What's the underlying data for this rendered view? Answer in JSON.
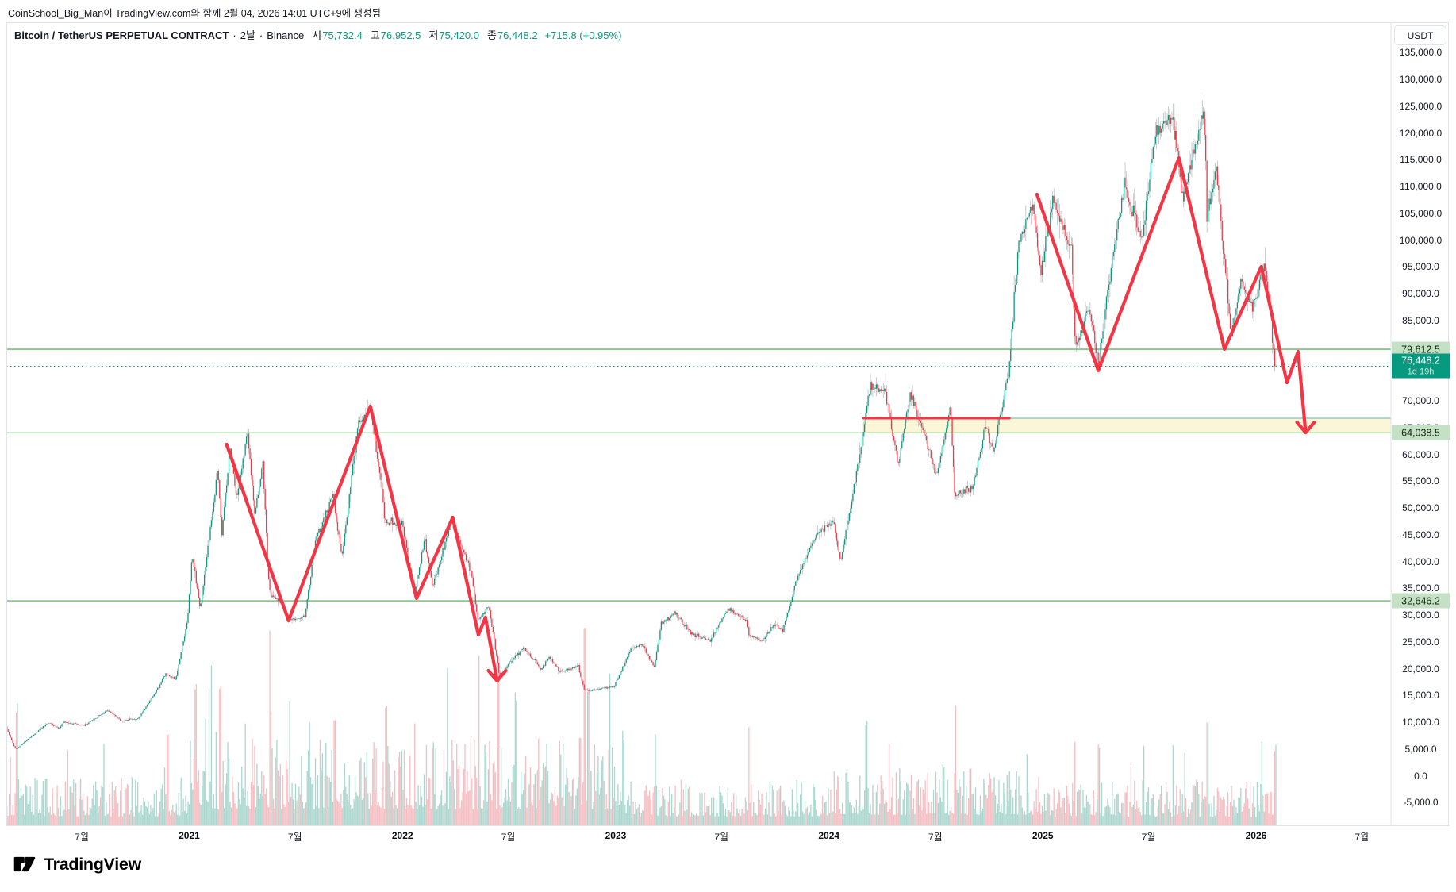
{
  "attribution": "CoinSchool_Big_Man이 TradingView.com와 함께 2월 04, 2026 14:01 UTC+9에 생성됨",
  "header": {
    "symbol": "Bitcoin / TetherUS PERPETUAL CONTRACT",
    "separator": "·",
    "interval": "2날",
    "exchange": "Binance",
    "ohlc": [
      {
        "label": "시",
        "value": "75,732.4"
      },
      {
        "label": "고",
        "value": "76,952.5"
      },
      {
        "label": "저",
        "value": "75,420.0"
      },
      {
        "label": "종",
        "value": "76,448.2"
      }
    ],
    "change": "+715.8 (+0.95%)"
  },
  "axis": {
    "currency_button": "USDT",
    "price_labels": [
      "135,000.0",
      "130,000.0",
      "125,000.0",
      "120,000.0",
      "115,000.0",
      "110,000.0",
      "105,000.0",
      "100,000.0",
      "95,000.0",
      "90,000.0",
      "85,000.0",
      "70,000.0",
      "65,000.0",
      "60,000.0",
      "55,000.0",
      "50,000.0",
      "45,000.0",
      "40,000.0",
      "35,000.0",
      "30,000.0",
      "25,000.0",
      "20,000.0",
      "15,000.0",
      "10,000.0",
      "5,000.0",
      "0.0",
      "-5,000.0"
    ],
    "time_labels": [
      {
        "text": "7월",
        "date": "2020-07-01",
        "year": false
      },
      {
        "text": "2021",
        "date": "2021-01-01",
        "year": true
      },
      {
        "text": "7월",
        "date": "2021-07-01",
        "year": false
      },
      {
        "text": "2022",
        "date": "2022-01-01",
        "year": true
      },
      {
        "text": "7월",
        "date": "2022-07-01",
        "year": false
      },
      {
        "text": "2023",
        "date": "2023-01-01",
        "year": true
      },
      {
        "text": "7월",
        "date": "2023-07-01",
        "year": false
      },
      {
        "text": "2024",
        "date": "2024-01-01",
        "year": true
      },
      {
        "text": "7월",
        "date": "2024-07-01",
        "year": false
      },
      {
        "text": "2025",
        "date": "2025-01-01",
        "year": true
      },
      {
        "text": "7월",
        "date": "2025-07-01",
        "year": false
      },
      {
        "text": "2026",
        "date": "2026-01-01",
        "year": true
      },
      {
        "text": "7월",
        "date": "2026-07-01",
        "year": false
      }
    ]
  },
  "logo": {
    "text": "TradingView"
  },
  "colors": {
    "up": "#089981",
    "down": "#f23645",
    "wick": "#a0a3ab",
    "vol_up": "#abd7cf",
    "vol_down": "#f4bfc3",
    "line_green": "#8ec78f",
    "label_green_bg": "#c5e1c5",
    "teal": "#089981",
    "zone_fill": "#fcf6d8",
    "zone_border": "#46a79b",
    "drawing_red": "#f23645",
    "axis_border": "#e0e3eb",
    "text": "#131722"
  },
  "chart_data": {
    "type": "candlestick",
    "symbol": "Bitcoin / TetherUS PERPETUAL CONTRACT",
    "exchange": "Binance",
    "interval": "2날",
    "quote_currency": "USDT",
    "current_price": 76448.2,
    "price_axis": {
      "min": -5000,
      "max": 135000,
      "tick_step": 5000
    },
    "time_axis_range": [
      "2020-02-22",
      "2026-08-01"
    ],
    "levels": {
      "resistance": {
        "price": 79612.5,
        "label": "79,612.5"
      },
      "current": {
        "price": 76448.2,
        "label": "76,448.2",
        "countdown": "1d 19h"
      },
      "zone_bottom": {
        "price": 64038.5,
        "label": "64,038.5"
      },
      "support": {
        "price": 32646.2,
        "label": "32,646.2"
      }
    },
    "supply_zone": {
      "from": "2024-02-29",
      "price_top": 66741,
      "price_bottom": 64038.5,
      "extend_right": true
    },
    "red_horizontal_line": {
      "from": "2024-02-29",
      "to": "2024-11-05",
      "price": 66741
    },
    "drawings": [
      {
        "name": "bear-zigzag-2021-2022",
        "arrow": "down",
        "points": [
          [
            "2021-03-06",
            61850
          ],
          [
            "2021-06-20",
            28960
          ],
          [
            "2021-11-07",
            68960
          ],
          [
            "2022-01-25",
            33110
          ],
          [
            "2022-03-28",
            48220
          ],
          [
            "2022-05-11",
            26300
          ],
          [
            "2022-05-23",
            29560
          ],
          [
            "2022-06-12",
            17700
          ]
        ]
      },
      {
        "name": "bear-zigzag-2025-2026",
        "arrow": "down",
        "points": [
          [
            "2024-12-22",
            108520
          ],
          [
            "2025-04-06",
            75630
          ],
          [
            "2025-08-22",
            115330
          ],
          [
            "2025-11-08",
            79630
          ],
          [
            "2026-01-10",
            95040
          ],
          [
            "2026-02-23",
            73410
          ],
          [
            "2026-03-14",
            79190
          ],
          [
            "2026-03-27",
            64070
          ]
        ]
      }
    ],
    "price_path": [
      [
        "2020-02-22",
        9650
      ],
      [
        "2020-03-12",
        4900
      ],
      [
        "2020-04-06",
        7200
      ],
      [
        "2020-05-07",
        9900
      ],
      [
        "2020-05-25",
        8800
      ],
      [
        "2020-06-02",
        10100
      ],
      [
        "2020-07-06",
        9300
      ],
      [
        "2020-08-17",
        12250
      ],
      [
        "2020-09-08",
        10250
      ],
      [
        "2020-10-07",
        10650
      ],
      [
        "2020-11-06",
        15500
      ],
      [
        "2020-11-24",
        19100
      ],
      [
        "2020-12-11",
        17900
      ],
      [
        "2020-12-31",
        29000
      ],
      [
        "2021-01-08",
        41200
      ],
      [
        "2021-01-22",
        31200
      ],
      [
        "2021-02-21",
        57400
      ],
      [
        "2021-02-28",
        44800
      ],
      [
        "2021-03-13",
        61000
      ],
      [
        "2021-03-25",
        52000
      ],
      [
        "2021-04-13",
        64200
      ],
      [
        "2021-04-25",
        48900
      ],
      [
        "2021-05-09",
        58300
      ],
      [
        "2021-05-19",
        36500
      ],
      [
        "2021-05-23",
        33500
      ],
      [
        "2021-06-08",
        32500
      ],
      [
        "2021-06-22",
        29000
      ],
      [
        "2021-07-20",
        29700
      ],
      [
        "2021-08-08",
        44500
      ],
      [
        "2021-09-06",
        52300
      ],
      [
        "2021-09-21",
        40800
      ],
      [
        "2021-10-20",
        66200
      ],
      [
        "2021-11-09",
        68300
      ],
      [
        "2021-11-28",
        54500
      ],
      [
        "2021-12-04",
        47500
      ],
      [
        "2022-01-02",
        47200
      ],
      [
        "2022-01-24",
        34300
      ],
      [
        "2022-02-10",
        44200
      ],
      [
        "2022-02-24",
        35300
      ],
      [
        "2022-03-28",
        47600
      ],
      [
        "2022-04-30",
        38200
      ],
      [
        "2022-05-12",
        29000
      ],
      [
        "2022-05-31",
        31600
      ],
      [
        "2022-06-13",
        22500
      ],
      [
        "2022-06-18",
        18600
      ],
      [
        "2022-07-08",
        21500
      ],
      [
        "2022-07-30",
        23900
      ],
      [
        "2022-08-28",
        19900
      ],
      [
        "2022-09-12",
        22200
      ],
      [
        "2022-09-30",
        19400
      ],
      [
        "2022-10-31",
        20500
      ],
      [
        "2022-11-09",
        16300
      ],
      [
        "2022-11-21",
        15900
      ],
      [
        "2022-12-31",
        16550
      ],
      [
        "2023-01-29",
        23700
      ],
      [
        "2023-02-16",
        24600
      ],
      [
        "2023-03-10",
        20300
      ],
      [
        "2023-03-22",
        28300
      ],
      [
        "2023-04-14",
        30400
      ],
      [
        "2023-05-12",
        26500
      ],
      [
        "2023-06-15",
        25300
      ],
      [
        "2023-07-13",
        31200
      ],
      [
        "2023-08-16",
        29000
      ],
      [
        "2023-08-18",
        26200
      ],
      [
        "2023-09-11",
        25200
      ],
      [
        "2023-10-02",
        28200
      ],
      [
        "2023-10-16",
        27000
      ],
      [
        "2023-11-09",
        36800
      ],
      [
        "2023-12-08",
        44200
      ],
      [
        "2024-01-11",
        47500
      ],
      [
        "2024-01-23",
        39700
      ],
      [
        "2024-02-28",
        62000
      ],
      [
        "2024-03-13",
        72800
      ],
      [
        "2024-04-08",
        71500
      ],
      [
        "2024-05-01",
        58200
      ],
      [
        "2024-05-21",
        71200
      ],
      [
        "2024-06-24",
        60100
      ],
      [
        "2024-07-05",
        55800
      ],
      [
        "2024-07-29",
        69600
      ],
      [
        "2024-08-05",
        52500
      ],
      [
        "2024-09-06",
        53900
      ],
      [
        "2024-09-27",
        65700
      ],
      [
        "2024-10-10",
        60300
      ],
      [
        "2024-11-06",
        75500
      ],
      [
        "2024-11-22",
        99000
      ],
      [
        "2024-12-17",
        106800
      ],
      [
        "2024-12-30",
        93500
      ],
      [
        "2025-01-20",
        107500
      ],
      [
        "2025-02-21",
        98500
      ],
      [
        "2025-02-28",
        79800
      ],
      [
        "2025-03-24",
        87600
      ],
      [
        "2025-04-08",
        76800
      ],
      [
        "2025-05-02",
        97000
      ],
      [
        "2025-05-22",
        110300
      ],
      [
        "2025-06-22",
        99800
      ],
      [
        "2025-07-14",
        120500
      ],
      [
        "2025-08-13",
        122800
      ],
      [
        "2025-08-31",
        108300
      ],
      [
        "2025-09-18",
        116300
      ],
      [
        "2025-10-06",
        124800
      ],
      [
        "2025-10-11",
        104700
      ],
      [
        "2025-10-27",
        113500
      ],
      [
        "2025-11-21",
        81800
      ],
      [
        "2025-12-09",
        92800
      ],
      [
        "2025-12-28",
        86900
      ],
      [
        "2026-01-17",
        94800
      ],
      [
        "2026-01-27",
        87500
      ],
      [
        "2026-02-04",
        76448
      ]
    ],
    "volume_spikes": [
      [
        "2020-03-12",
        150
      ],
      [
        "2020-11-25",
        110
      ],
      [
        "2021-01-11",
        165
      ],
      [
        "2021-02-23",
        175
      ],
      [
        "2021-05-19",
        245
      ],
      [
        "2021-06-22",
        160
      ],
      [
        "2021-07-26",
        135
      ],
      [
        "2021-09-07",
        130
      ],
      [
        "2021-12-04",
        145
      ],
      [
        "2022-01-22",
        130
      ],
      [
        "2022-05-12",
        215
      ],
      [
        "2022-06-14",
        225
      ],
      [
        "2022-07-14",
        170
      ],
      [
        "2022-11-09",
        255
      ],
      [
        "2022-11-15",
        180
      ],
      [
        "2023-01-14",
        115
      ],
      [
        "2023-03-10",
        125
      ],
      [
        "2023-08-17",
        130
      ],
      [
        "2024-03-05",
        130
      ],
      [
        "2024-04-13",
        105
      ],
      [
        "2024-08-05",
        150
      ],
      [
        "2024-12-05",
        95
      ],
      [
        "2025-02-25",
        110
      ],
      [
        "2025-04-07",
        100
      ],
      [
        "2025-10-10",
        135
      ],
      [
        "2026-02-03",
        100
      ]
    ]
  }
}
